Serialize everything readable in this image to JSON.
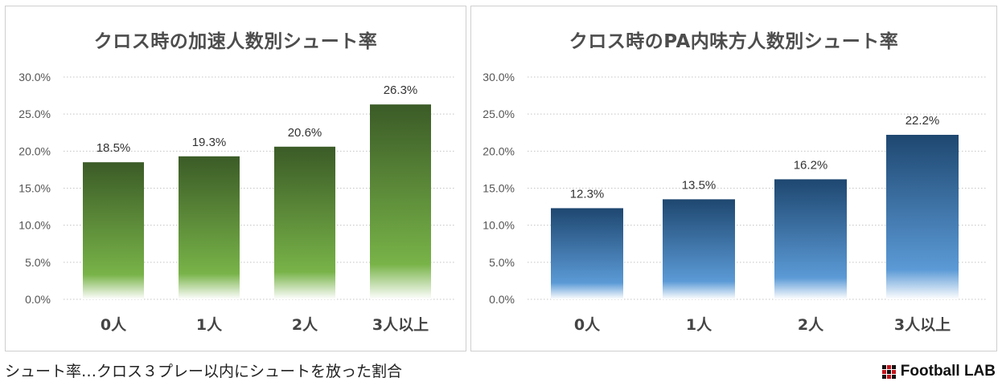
{
  "chart_data": [
    {
      "type": "bar",
      "title": "クロス時の加速人数別シュート率",
      "categories": [
        "0人",
        "1人",
        "2人",
        "3人以上"
      ],
      "values": [
        18.5,
        19.3,
        20.6,
        26.3
      ],
      "value_labels": [
        "18.5%",
        "19.3%",
        "20.6%",
        "26.3%"
      ],
      "y_ticks": [
        0,
        5,
        10,
        15,
        20,
        25,
        30
      ],
      "y_tick_labels": [
        "0.0%",
        "5.0%",
        "10.0%",
        "15.0%",
        "20.0%",
        "25.0%",
        "30.0%"
      ],
      "ylim": [
        0,
        30
      ],
      "grid": true,
      "colors": {
        "top": "#3b5b27",
        "bottom": "#78b348"
      }
    },
    {
      "type": "bar",
      "title": "クロス時のPA内味方人数別シュート率",
      "categories": [
        "0人",
        "1人",
        "2人",
        "3人以上"
      ],
      "values": [
        12.3,
        13.5,
        16.2,
        22.2
      ],
      "value_labels": [
        "12.3%",
        "13.5%",
        "16.2%",
        "22.2%"
      ],
      "y_ticks": [
        0,
        5,
        10,
        15,
        20,
        25,
        30
      ],
      "y_tick_labels": [
        "0.0%",
        "5.0%",
        "10.0%",
        "15.0%",
        "20.0%",
        "25.0%",
        "30.0%"
      ],
      "ylim": [
        0,
        30
      ],
      "grid": true,
      "colors": {
        "top": "#1e4770",
        "bottom": "#5b9ad6"
      }
    }
  ],
  "footnote": "シュート率…クロス３プレー以内にシュートを放った割合",
  "brand": "Football LAB"
}
